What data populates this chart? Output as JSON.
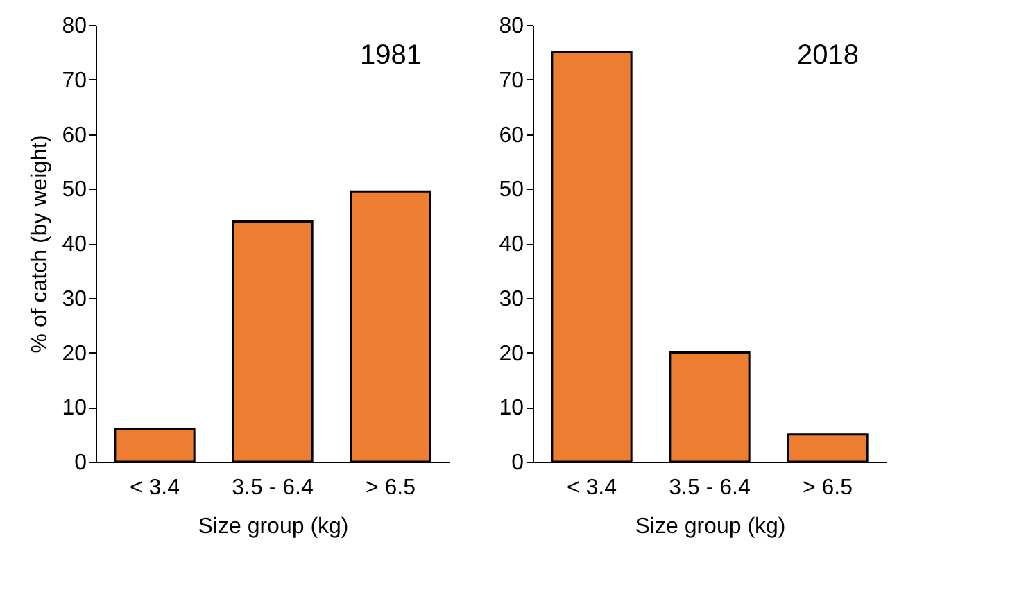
{
  "chart_data": [
    {
      "type": "bar",
      "title": "1981",
      "categories": [
        "< 3.4",
        "3.5 - 6.4",
        "> 6.5"
      ],
      "values": [
        6,
        44,
        49.5
      ],
      "color": "#ed7d31",
      "xlabel": "Size group (kg)",
      "ylabel": "% of catch (by weight)",
      "ylim": [
        0,
        80
      ],
      "yticks": [
        0,
        10,
        20,
        30,
        40,
        50,
        60,
        70,
        80
      ],
      "grid": false
    },
    {
      "type": "bar",
      "title": "2018",
      "categories": [
        "< 3.4",
        "3.5 - 6.4",
        "> 6.5"
      ],
      "values": [
        75,
        20,
        5
      ],
      "color": "#ed7d31",
      "xlabel": "Size group (kg)",
      "ylim": [
        0,
        80
      ],
      "yticks": [
        0,
        10,
        20,
        30,
        40,
        50,
        60,
        70,
        80
      ],
      "grid": false
    }
  ]
}
